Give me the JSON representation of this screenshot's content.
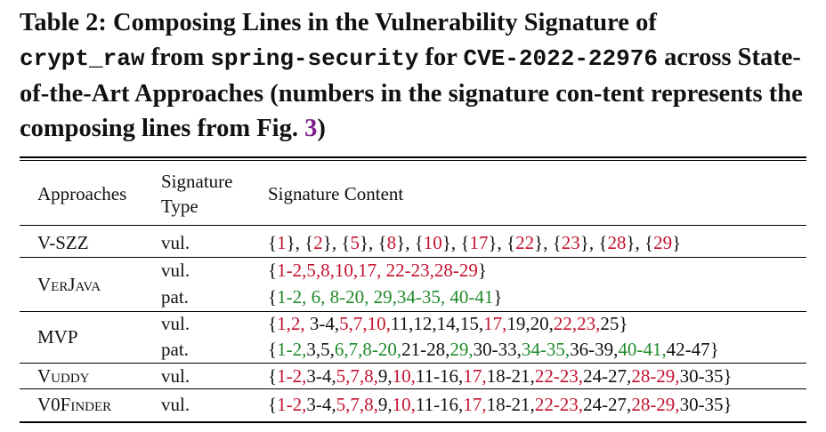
{
  "caption": {
    "part1": "Table 2: Composing Lines in the Vulnerability Signature of",
    "code1": "crypt_raw",
    "part2": " from ",
    "code2": "spring-security",
    "part3": " for ",
    "code3": "CVE-2022-22976",
    "part4": " across State-of-the-Art Approaches (numbers in the signature con-tent represents the composing lines from Fig. ",
    "fig_ref": "3",
    "part5": ")"
  },
  "headers": {
    "approaches": "Approaches",
    "type_line1": "Signature",
    "type_line2": "Type",
    "content": "Signature Content"
  },
  "colors": {
    "vulnerable": "#c4122f",
    "patch": "#1f8a2a",
    "reference": "#7a1f8c"
  },
  "rows": [
    {
      "approach": "V-SZZ",
      "type": "vul.",
      "segments": [
        [
          "{",
          ""
        ],
        [
          "1",
          "r"
        ],
        [
          "}, {",
          ""
        ],
        [
          "2",
          "r"
        ],
        [
          "}, {",
          ""
        ],
        [
          "5",
          "r"
        ],
        [
          "}, {",
          ""
        ],
        [
          "8",
          "r"
        ],
        [
          "}, {",
          ""
        ],
        [
          "10",
          "r"
        ],
        [
          "}, {",
          ""
        ],
        [
          "17",
          "r"
        ],
        [
          "}, {",
          ""
        ],
        [
          "22",
          "r"
        ],
        [
          "}, {",
          ""
        ],
        [
          "23",
          "r"
        ],
        [
          "}, {",
          ""
        ],
        [
          "28",
          "r"
        ],
        [
          "}, {",
          ""
        ],
        [
          "29",
          "r"
        ],
        [
          "}",
          ""
        ]
      ]
    },
    {
      "approach": "VerJava",
      "type": "vul.",
      "segments": [
        [
          "{",
          ""
        ],
        [
          "1-2,5,8,10,17, 22-23,28-29",
          "r"
        ],
        [
          "}",
          ""
        ]
      ]
    },
    {
      "approach": "",
      "type": "pat.",
      "segments": [
        [
          "{",
          ""
        ],
        [
          "1-2, 6, 8-20, 29,34-35, 40-41",
          "g"
        ],
        [
          "}",
          ""
        ]
      ]
    },
    {
      "approach": "MVP",
      "type": "vul.",
      "segments": [
        [
          "{",
          ""
        ],
        [
          "1,2,",
          "r"
        ],
        [
          " 3-4,",
          ""
        ],
        [
          "5,7,10,",
          "r"
        ],
        [
          "11,12,14,15,",
          ""
        ],
        [
          "17,",
          "r"
        ],
        [
          "19,20,",
          ""
        ],
        [
          "22,23,",
          "r"
        ],
        [
          "25}",
          ""
        ]
      ]
    },
    {
      "approach": "",
      "type": "pat.",
      "segments": [
        [
          "{",
          ""
        ],
        [
          "1-2,",
          "g"
        ],
        [
          "3,5,",
          ""
        ],
        [
          "6,7,8-20,",
          "g"
        ],
        [
          "21-28,",
          ""
        ],
        [
          "29,",
          "g"
        ],
        [
          "30-33,",
          ""
        ],
        [
          "34-35,",
          "g"
        ],
        [
          "36-39,",
          ""
        ],
        [
          "40-41,",
          "g"
        ],
        [
          "42-47}",
          ""
        ]
      ]
    },
    {
      "approach": "Vuddy",
      "type": "vul.",
      "segments": [
        [
          "{",
          ""
        ],
        [
          "1-2,",
          "r"
        ],
        [
          "3-4,",
          ""
        ],
        [
          "5,7,8,",
          "r"
        ],
        [
          "9,",
          ""
        ],
        [
          "10,",
          "r"
        ],
        [
          "11-16,",
          ""
        ],
        [
          "17,",
          "r"
        ],
        [
          "18-21,",
          ""
        ],
        [
          "22-23,",
          "r"
        ],
        [
          "24-27,",
          ""
        ],
        [
          "28-29,",
          "r"
        ],
        [
          "30-35}",
          ""
        ]
      ]
    },
    {
      "approach": "V0Finder",
      "type": "vul.",
      "segments": [
        [
          "{",
          ""
        ],
        [
          "1-2,",
          "r"
        ],
        [
          "3-4,",
          ""
        ],
        [
          "5,7,8,",
          "r"
        ],
        [
          "9,",
          ""
        ],
        [
          "10,",
          "r"
        ],
        [
          "11-16,",
          ""
        ],
        [
          "17,",
          "r"
        ],
        [
          "18-21,",
          ""
        ],
        [
          "22-23,",
          "r"
        ],
        [
          "24-27,",
          ""
        ],
        [
          "28-29,",
          "r"
        ],
        [
          "30-35}",
          ""
        ]
      ]
    }
  ]
}
